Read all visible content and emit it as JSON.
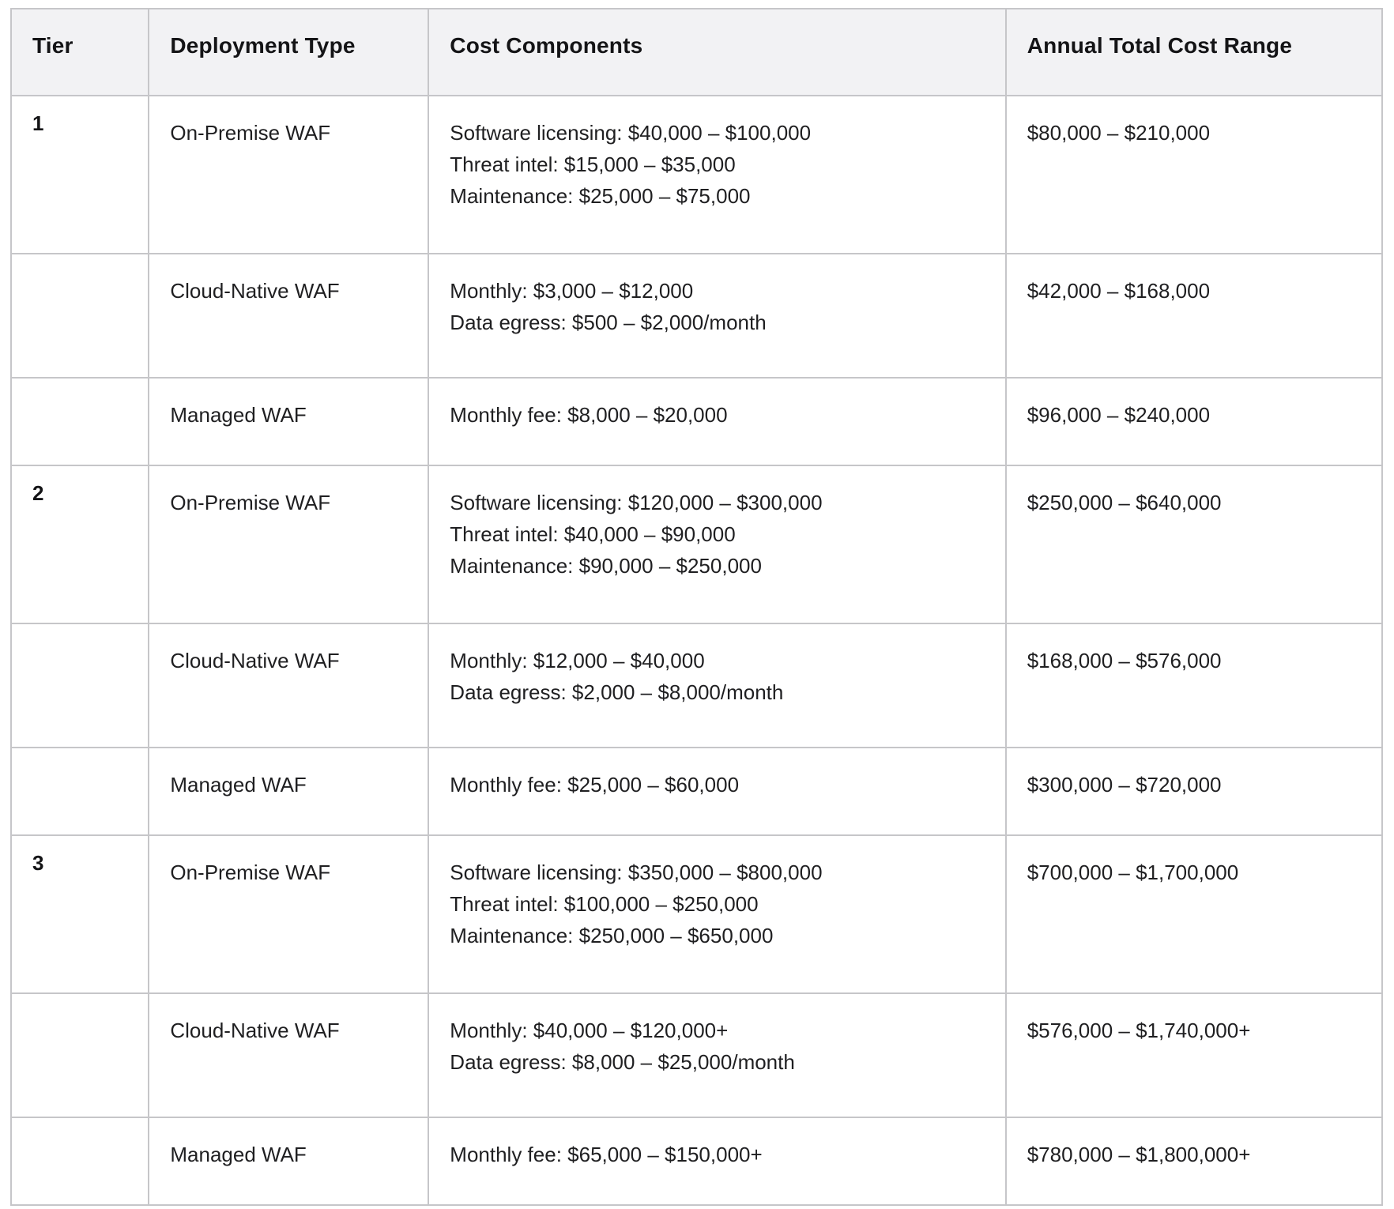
{
  "table": {
    "columns": [
      {
        "label": "Tier"
      },
      {
        "label": "Deployment Type"
      },
      {
        "label": "Cost Components"
      },
      {
        "label": "Annual Total Cost Range"
      }
    ],
    "rows": [
      {
        "tier": "1",
        "deployment": "On-Premise WAF",
        "components": [
          "Software licensing: $40,000 – $100,000",
          "Threat intel: $15,000 – $35,000",
          "Maintenance: $25,000 – $75,000"
        ],
        "annual": "$80,000 – $210,000"
      },
      {
        "tier": "",
        "deployment": "Cloud-Native WAF",
        "components": [
          "Monthly: $3,000 – $12,000",
          "Data egress: $500 – $2,000/month"
        ],
        "annual": "$42,000 – $168,000"
      },
      {
        "tier": "",
        "deployment": "Managed WAF",
        "components": [
          "Monthly fee: $8,000 – $20,000"
        ],
        "annual": "$96,000 – $240,000"
      },
      {
        "tier": "2",
        "deployment": "On-Premise WAF",
        "components": [
          "Software licensing: $120,000 – $300,000",
          "Threat intel: $40,000 – $90,000",
          "Maintenance: $90,000 – $250,000"
        ],
        "annual": "$250,000 – $640,000"
      },
      {
        "tier": "",
        "deployment": "Cloud-Native WAF",
        "components": [
          "Monthly: $12,000 – $40,000",
          "Data egress: $2,000 – $8,000/month"
        ],
        "annual": "$168,000 – $576,000"
      },
      {
        "tier": "",
        "deployment": "Managed WAF",
        "components": [
          "Monthly fee: $25,000 – $60,000"
        ],
        "annual": "$300,000 – $720,000"
      },
      {
        "tier": "3",
        "deployment": "On-Premise WAF",
        "components": [
          "Software licensing: $350,000 – $800,000",
          "Threat intel: $100,000 – $250,000",
          "Maintenance: $250,000 – $650,000"
        ],
        "annual": "$700,000 – $1,700,000"
      },
      {
        "tier": "",
        "deployment": "Cloud-Native WAF",
        "components": [
          "Monthly: $40,000 – $120,000+",
          "Data egress: $8,000 – $25,000/month"
        ],
        "annual": "$576,000 – $1,740,000+"
      },
      {
        "tier": "",
        "deployment": "Managed WAF",
        "components": [
          "Monthly fee: $65,000 – $150,000+"
        ],
        "annual": "$780,000 – $1,800,000+"
      }
    ],
    "colors": {
      "header_bg": "#f2f2f4",
      "border": "#c6c6c9",
      "text": "#1f1f21",
      "background": "#ffffff"
    }
  }
}
